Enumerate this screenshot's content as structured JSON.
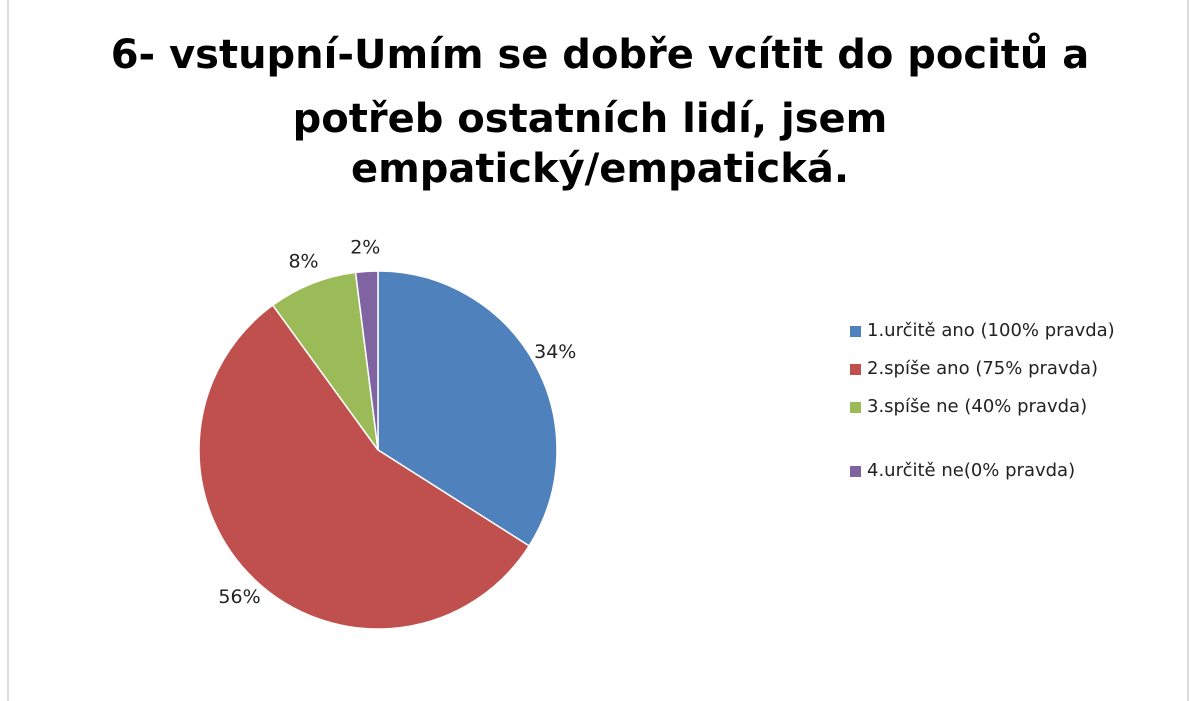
{
  "chart_data": {
    "type": "pie",
    "title": [
      "6- vstupní-Umím se dobře vcítit do pocitů a",
      "potřeb ostatních lidí, jsem",
      "empatický/empatická."
    ],
    "categories": [
      "1.určitě ano (100% pravda)",
      "2.spíše ano (75% pravda)",
      "3.spíše ne (40% pravda)",
      "4.určitě ne(0% pravda)"
    ],
    "values": [
      34,
      56,
      8,
      2
    ],
    "value_labels": [
      "34%",
      "56%",
      "8%",
      "2%"
    ],
    "colors": [
      "#4f81bd",
      "#c0504d",
      "#9bbb59",
      "#8064a2"
    ],
    "legend": "right"
  }
}
